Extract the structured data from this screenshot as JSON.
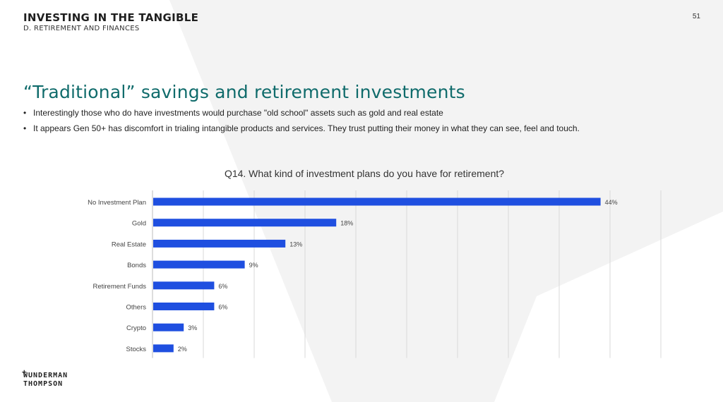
{
  "header": {
    "title": "INVESTING IN THE TANGIBLE",
    "subtitle": "D. RETIREMENT AND FINANCES",
    "page_number": "51"
  },
  "slide": {
    "title": "“Traditional” savings and retirement investments",
    "bullets": [
      "Interestingly those who do have investments would purchase \"old school\" assets such as gold and real estate",
      "It appears Gen 50+ has discomfort in trialing intangible products and services. They trust putting their money in what they can see, feel and touch."
    ]
  },
  "logo": {
    "line1": "WUNDERMAN",
    "line2": "THOMPSON"
  },
  "colors": {
    "bar": "#1f4fe0",
    "title": "#0f6b6b",
    "grid": "#d9d9d9"
  },
  "chart_data": {
    "type": "bar",
    "orientation": "horizontal",
    "title": "Q14. What kind of investment plans do you have for retirement?",
    "categories": [
      "No Investment Plan",
      "Gold",
      "Real Estate",
      "Bonds",
      "Retirement Funds",
      "Others",
      "Crypto",
      "Stocks"
    ],
    "values": [
      44,
      18,
      13,
      9,
      6,
      6,
      3,
      2
    ],
    "value_labels": [
      "44%",
      "18%",
      "13%",
      "9%",
      "6%",
      "6%",
      "3%",
      "2%"
    ],
    "xlim": [
      0,
      50
    ],
    "grid": true
  }
}
